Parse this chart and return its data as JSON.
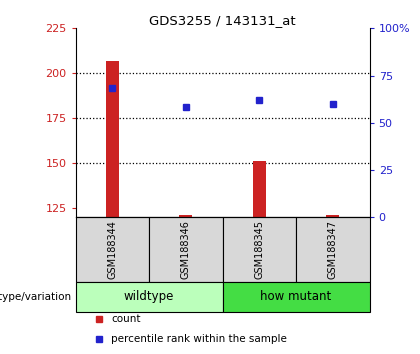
{
  "title": "GDS3255 / 143131_at",
  "samples": [
    "GSM188344",
    "GSM188346",
    "GSM188345",
    "GSM188347"
  ],
  "count_values": [
    207,
    121,
    151,
    121
  ],
  "percentile_values": [
    192,
    181,
    185,
    183
  ],
  "ylim_left": [
    120,
    225
  ],
  "yticks_left": [
    125,
    150,
    175,
    200,
    225
  ],
  "yticks_right": [
    0,
    25,
    50,
    75,
    100
  ],
  "ylim_right": [
    0,
    100
  ],
  "bar_color": "#cc2222",
  "point_color": "#2222cc",
  "groups": [
    {
      "label": "wildtype",
      "span": [
        0,
        1
      ],
      "color": "#bbffbb"
    },
    {
      "label": "how mutant",
      "span": [
        2,
        3
      ],
      "color": "#44dd44"
    }
  ],
  "label_text": "genotype/variation",
  "legend_items": [
    {
      "color": "#cc2222",
      "label": "count"
    },
    {
      "color": "#2222cc",
      "label": "percentile rank within the sample"
    }
  ],
  "axis_bg": "#d8d8d8",
  "plot_bg": "#ffffff",
  "grid_color": "#000000"
}
